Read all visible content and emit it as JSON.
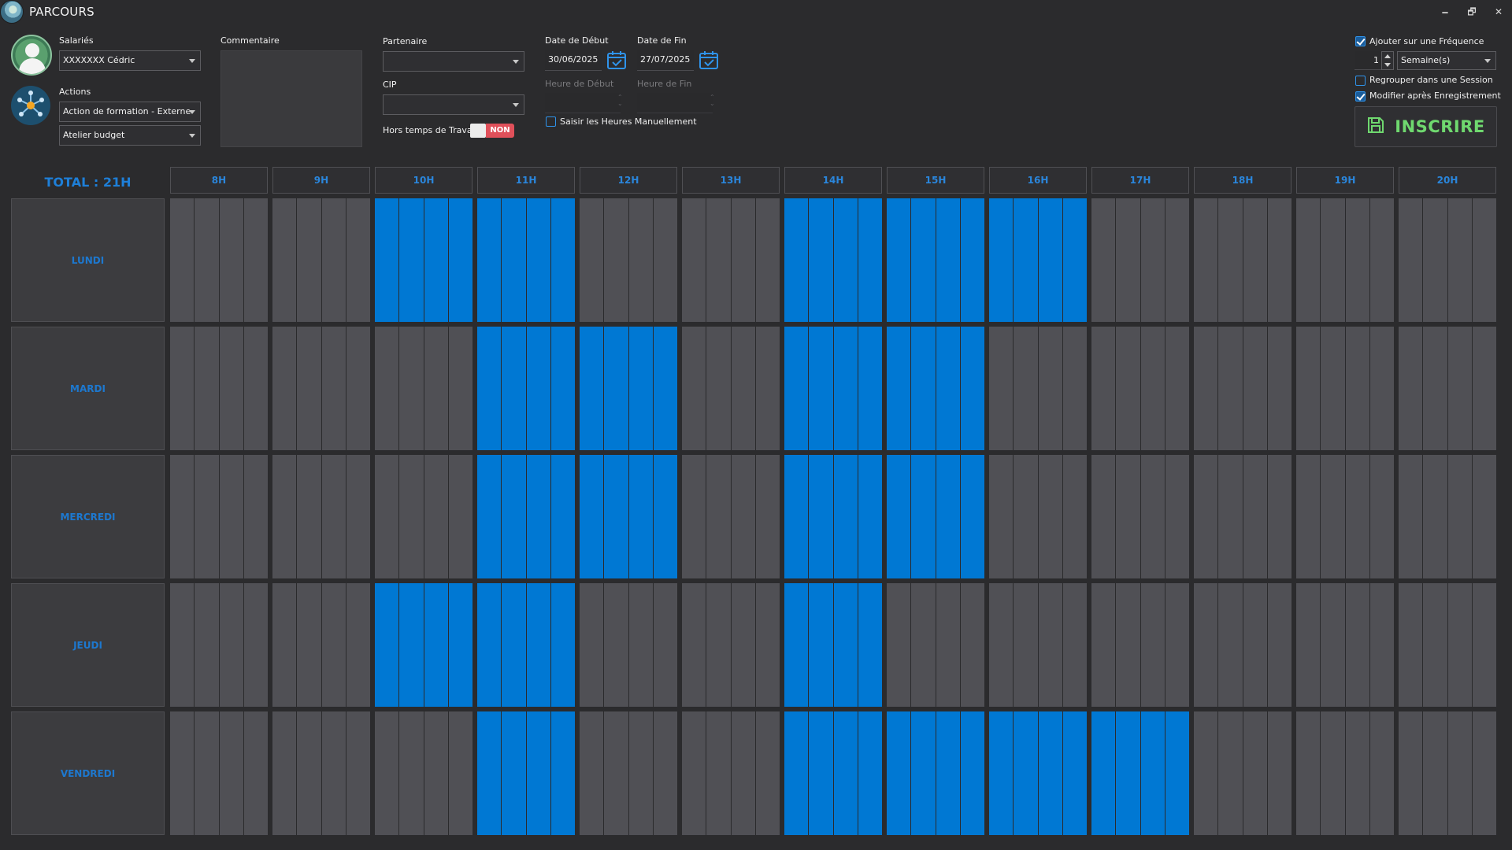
{
  "window": {
    "title": "PARCOURS",
    "minimize": "🗕",
    "restore": "🗗",
    "close": "✕"
  },
  "form": {
    "salaries_label": "Salariés",
    "salaries_value": "XXXXXXX Cédric",
    "actions_label": "Actions",
    "action_value": "Action de formation - Externe",
    "atelier_value": "Atelier budget",
    "commentaire_label": "Commentaire",
    "partenaire_label": "Partenaire",
    "partenaire_value": "",
    "cip_label": "CIP",
    "cip_value": "",
    "hors_temps_label": "Hors temps de Travail",
    "hors_temps_toggle": "NON",
    "date_debut_label": "Date de Début",
    "date_debut_value": "30/06/2025",
    "date_fin_label": "Date de Fin",
    "date_fin_value": "27/07/2025",
    "heure_debut_label": "Heure de Début",
    "heure_fin_label": "Heure de Fin",
    "saisir_heures_label": "Saisir les Heures Manuellement",
    "saisir_heures_checked": false
  },
  "options": {
    "frequence_label": "Ajouter sur une Fréquence",
    "frequence_checked": true,
    "frequence_count": "1",
    "frequence_unit": "Semaine(s)",
    "regrouper_label": "Regrouper dans une Session",
    "regrouper_checked": false,
    "modifier_label": "Modifier après Enregistrement",
    "modifier_checked": true,
    "inscrire_label": "INSCRIRE"
  },
  "schedule": {
    "total": "TOTAL : 21H",
    "hours": [
      "8H",
      "9H",
      "10H",
      "11H",
      "12H",
      "13H",
      "14H",
      "15H",
      "16H",
      "17H",
      "18H",
      "19H",
      "20H"
    ],
    "days": [
      {
        "name": "LUNDI",
        "active_hours": [
          "10H",
          "11H",
          "14H",
          "15H",
          "16H"
        ]
      },
      {
        "name": "MARDI",
        "active_hours": [
          "11H",
          "12H",
          "14H",
          "15H"
        ]
      },
      {
        "name": "MERCREDI",
        "active_hours": [
          "11H",
          "12H",
          "14H",
          "15H"
        ]
      },
      {
        "name": "JEUDI",
        "active_hours": [
          "10H",
          "11H",
          "14H"
        ]
      },
      {
        "name": "VENDREDI",
        "active_hours": [
          "11H",
          "14H",
          "15H",
          "16H",
          "17H"
        ]
      }
    ],
    "slots_per_hour": 4
  },
  "colors": {
    "accent": "#0078d3",
    "slot_empty": "#505055",
    "inscrire": "#6fd86f",
    "toggle_off": "#e0505a"
  },
  "icons": {
    "app": "parcours-logo-icon",
    "avatar": "user-avatar-icon",
    "actions": "network-hub-icon",
    "calendar": "calendar-check-icon",
    "save": "floppy-disk-icon"
  }
}
